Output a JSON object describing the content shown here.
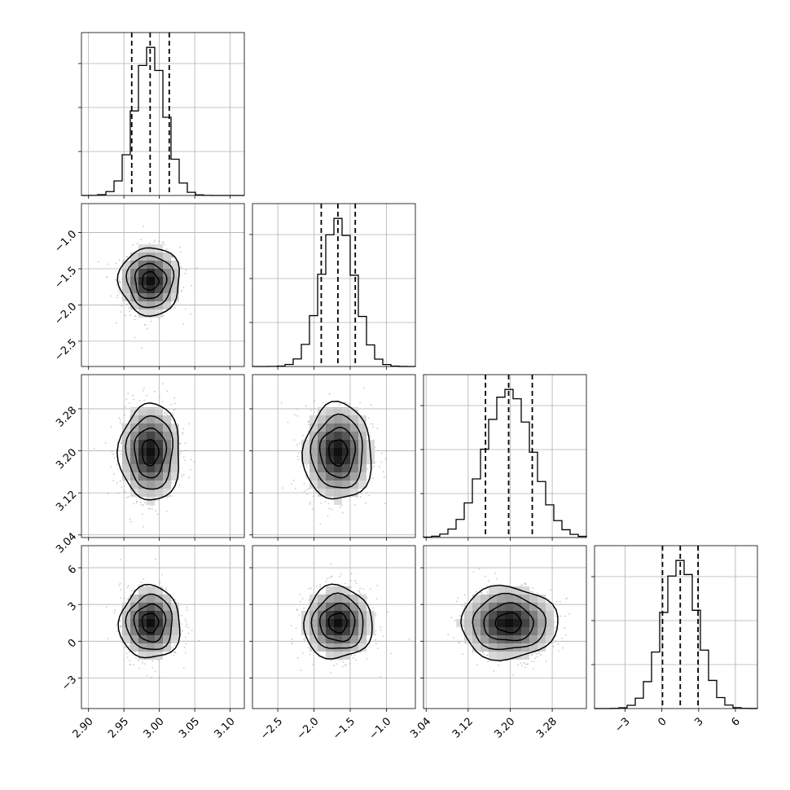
{
  "chart_data": {
    "type": "corner",
    "style": {
      "grid": true,
      "grid_color": "#b0b0b0",
      "line_color": "#000000",
      "point_color": "#9e9e9e",
      "quantile_style": "dashed",
      "contour_levels": 4
    },
    "parameters": [
      {
        "range": [
          2.89,
          3.12
        ],
        "ticks": [
          2.9,
          2.95,
          3.0,
          3.05,
          3.1
        ],
        "tick_labels": [
          "2.90",
          "2.95",
          "3.00",
          "3.05",
          "3.10"
        ],
        "mean": 2.987,
        "sd": 0.021,
        "quantiles": [
          2.961,
          2.987,
          3.014
        ]
      },
      {
        "range": [
          -2.85,
          -0.6
        ],
        "ticks": [
          -2.5,
          -2.0,
          -1.5,
          -1.0
        ],
        "tick_labels": [
          "−2.5",
          "−2.0",
          "−1.5",
          "−1.0"
        ],
        "mean": -1.67,
        "sd": 0.23,
        "quantiles": [
          -1.9,
          -1.67,
          -1.43
        ]
      },
      {
        "range": [
          3.035,
          3.345
        ],
        "ticks": [
          3.04,
          3.12,
          3.2,
          3.28
        ],
        "tick_labels": [
          "3.04",
          "3.12",
          "3.20",
          "3.28"
        ],
        "mean": 3.197,
        "sd": 0.045,
        "quantiles": [
          3.153,
          3.197,
          3.242
        ]
      },
      {
        "range": [
          -5.5,
          7.8
        ],
        "ticks": [
          -3,
          0,
          3,
          6
        ],
        "tick_labels": [
          "−3",
          "0",
          "3",
          "6"
        ],
        "mean": 1.5,
        "sd": 1.45,
        "quantiles": [
          0.05,
          1.5,
          2.95
        ]
      }
    ],
    "xlabel": "",
    "ylabel": "",
    "title": ""
  }
}
